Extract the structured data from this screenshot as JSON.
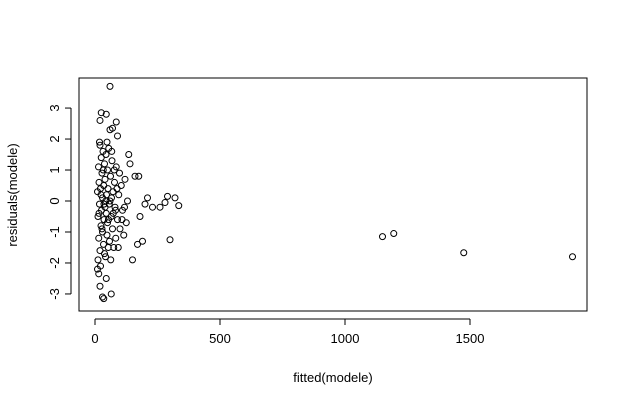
{
  "chart_data": {
    "type": "scatter",
    "x_label": "fitted(modele)",
    "y_label": "residuals(modele)",
    "xlim": [
      -64,
      1968
    ],
    "ylim": [
      -3.55,
      3.97
    ],
    "xticks": [
      0,
      500,
      1000,
      1500
    ],
    "yticks": [
      -3,
      -2,
      -1,
      0,
      1,
      2,
      3
    ],
    "color": "#000000",
    "x": [
      1150,
      1195,
      1475,
      1910,
      300,
      230,
      260,
      290,
      280,
      320,
      335,
      210,
      200,
      180,
      190,
      170,
      175,
      160,
      140,
      150,
      60,
      25,
      45,
      20,
      85,
      90,
      70,
      60,
      65,
      30,
      35,
      20,
      15,
      10,
      45,
      10,
      12,
      14,
      15,
      16,
      18,
      20,
      20,
      22,
      24,
      25,
      26,
      28,
      30,
      30,
      32,
      34,
      35,
      36,
      38,
      40,
      40,
      42,
      44,
      45,
      46,
      48,
      50,
      50,
      52,
      55,
      58,
      60,
      62,
      65,
      68,
      70,
      72,
      75,
      78,
      80,
      85,
      90,
      95,
      100,
      105,
      110,
      115,
      120,
      125,
      130,
      135,
      12,
      18,
      22,
      28,
      33,
      38,
      43,
      48,
      53,
      57,
      63,
      67,
      73,
      77,
      83,
      88,
      93,
      98,
      16,
      24,
      36,
      54,
      66,
      82,
      108,
      118
    ],
    "y": [
      -1.15,
      -1.05,
      -1.67,
      -1.8,
      -1.25,
      -0.2,
      -0.2,
      0.15,
      -0.05,
      0.1,
      -0.15,
      0.1,
      -0.1,
      -0.5,
      -1.3,
      -1.4,
      0.8,
      0.8,
      1.2,
      -1.9,
      3.7,
      2.85,
      2.8,
      2.6,
      2.55,
      2.1,
      2.35,
      2.3,
      -3,
      -3.1,
      -3.15,
      -2.75,
      -2.35,
      -2.2,
      -2.5,
      0.3,
      -0.5,
      1.1,
      -1.2,
      0.6,
      -0.1,
      1.8,
      -1.6,
      0.4,
      -0.8,
      1.4,
      -0.3,
      0.9,
      -1.0,
      0.1,
      1.6,
      -1.4,
      0.5,
      -0.6,
      1.2,
      -0.2,
      0.7,
      -1.8,
      1.5,
      -0.4,
      0.2,
      -1.1,
      1.0,
      -0.7,
      0.4,
      1.7,
      -1.3,
      0.0,
      0.8,
      -0.5,
      1.3,
      -0.9,
      0.3,
      -1.5,
      0.6,
      -0.2,
      1.1,
      -0.6,
      0.2,
      -0.9,
      0.5,
      -0.3,
      -1.1,
      0.7,
      -0.7,
      0.0,
      1.5,
      -1.9,
      1.9,
      -2.1,
      -0.9,
      1.0,
      -1.7,
      0.0,
      1.9,
      -1.5,
      -0.1,
      -1.9,
      1.6,
      -0.4,
      1.0,
      -1.2,
      0.4,
      -1.5,
      0.9,
      -0.4,
      0.2,
      -0.1,
      -0.6,
      0.1,
      -0.3,
      -0.6,
      -0.2
    ]
  }
}
